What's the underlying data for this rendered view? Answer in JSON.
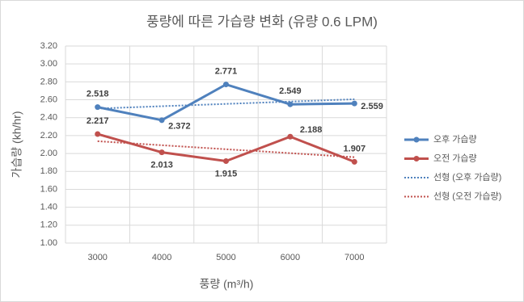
{
  "chart_data": {
    "type": "line",
    "title": "풍량에 따른 가습량 변화 (유량 0.6 LPM)",
    "x_label": "풍량 (m³/h)",
    "y_label": "가습량 (kh/hr)",
    "categories": [
      "3000",
      "4000",
      "5000",
      "6000",
      "7000"
    ],
    "series": [
      {
        "name": "오후 가습량",
        "color": "#4f81bd",
        "values": [
          2.518,
          2.372,
          2.771,
          2.549,
          2.559
        ]
      },
      {
        "name": "오전 가습량",
        "color": "#c0504d",
        "values": [
          2.217,
          2.013,
          1.915,
          2.188,
          1.907
        ]
      }
    ],
    "trendlines": [
      {
        "name": "선형 (오후 가습량)",
        "series": 0,
        "color": "#4f81bd",
        "kind": "linear"
      },
      {
        "name": "선형 (오전 가습량)",
        "series": 1,
        "color": "#c0504d",
        "kind": "linear"
      }
    ],
    "ylim": [
      1,
      3.2
    ],
    "yticks": [
      {
        "value": 1,
        "label": "1.00"
      },
      {
        "value": 1.2,
        "label": "1.20"
      },
      {
        "value": 1.4,
        "label": "1.40"
      },
      {
        "value": 1.6,
        "label": "1.60"
      },
      {
        "value": 1.8,
        "label": "1.80"
      },
      {
        "value": 2,
        "label": "2.00"
      },
      {
        "value": 2.2,
        "label": "2.20"
      },
      {
        "value": 2.4,
        "label": "2.40"
      },
      {
        "value": 2.6,
        "label": "2.60"
      },
      {
        "value": 2.8,
        "label": "2.80"
      },
      {
        "value": 3,
        "label": "3.00"
      },
      {
        "value": 3.2,
        "label": "3.20"
      }
    ],
    "grid": true,
    "legend": "right"
  }
}
